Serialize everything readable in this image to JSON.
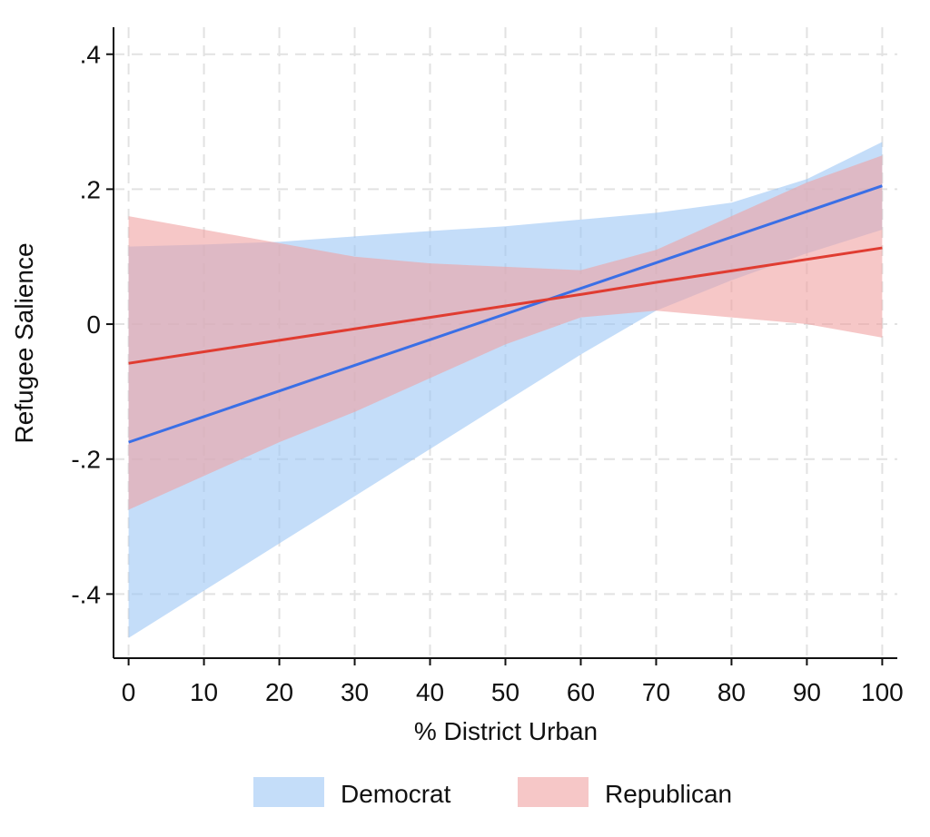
{
  "chart_data": {
    "type": "line",
    "xlabel": "% District Urban",
    "ylabel": "Refugee Salience",
    "xlim": [
      -2,
      102
    ],
    "ylim": [
      -0.495,
      0.44
    ],
    "xticks": [
      0,
      10,
      20,
      30,
      40,
      50,
      60,
      70,
      80,
      90,
      100
    ],
    "xtick_labels": [
      "0",
      "10",
      "20",
      "30",
      "40",
      "50",
      "60",
      "70",
      "80",
      "90",
      "100"
    ],
    "yticks": [
      0.4,
      0.2,
      0,
      -0.2,
      -0.4
    ],
    "ytick_labels": [
      ".4",
      ".2",
      "0",
      "-.2",
      "-.4"
    ],
    "grid": true,
    "legend_position": "bottom",
    "series": [
      {
        "name": "Democrat",
        "color": "#3a6fe6",
        "band_color": "#9cc6f5",
        "x": [
          0,
          10,
          20,
          30,
          40,
          50,
          60,
          70,
          80,
          90,
          100
        ],
        "y": [
          -0.175,
          -0.137,
          -0.099,
          -0.061,
          -0.023,
          0.015,
          0.053,
          0.091,
          0.129,
          0.167,
          0.205
        ],
        "ci_lower": [
          -0.465,
          -0.395,
          -0.325,
          -0.255,
          -0.185,
          -0.115,
          -0.045,
          0.02,
          0.065,
          0.105,
          0.14
        ],
        "ci_upper": [
          0.115,
          0.118,
          0.122,
          0.13,
          0.138,
          0.145,
          0.155,
          0.165,
          0.18,
          0.215,
          0.27
        ]
      },
      {
        "name": "Republican",
        "color": "#e03c31",
        "band_color": "#f0a2a2",
        "x": [
          0,
          10,
          20,
          30,
          40,
          50,
          60,
          70,
          80,
          90,
          100
        ],
        "y": [
          -0.058,
          -0.041,
          -0.024,
          -0.007,
          0.01,
          0.027,
          0.044,
          0.062,
          0.079,
          0.096,
          0.113
        ],
        "ci_lower": [
          -0.275,
          -0.225,
          -0.175,
          -0.13,
          -0.08,
          -0.03,
          0.01,
          0.02,
          0.01,
          0,
          -0.02
        ],
        "ci_upper": [
          0.16,
          0.14,
          0.12,
          0.1,
          0.09,
          0.085,
          0.08,
          0.11,
          0.16,
          0.21,
          0.25
        ]
      }
    ]
  }
}
